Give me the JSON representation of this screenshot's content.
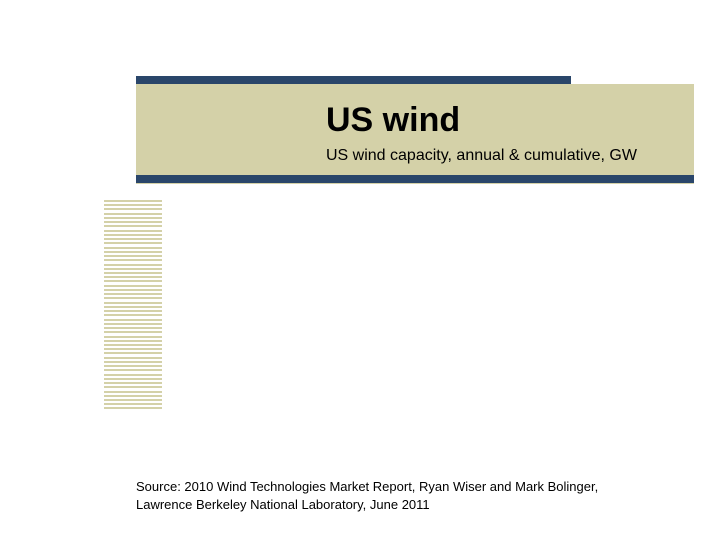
{
  "layout": {
    "slide_width": 720,
    "slide_height": 540,
    "background_color": "#ffffff"
  },
  "header": {
    "title": "US wind",
    "subtitle": "US wind capacity, annual & cumulative, GW",
    "band_color": "#d4d1a8",
    "bar_color": "#2a466a",
    "title_color": "#000000",
    "title_fontsize": 34,
    "subtitle_fontsize": 16
  },
  "stripes": {
    "count": 50,
    "color": "#d4d1a8"
  },
  "footer": {
    "source_line1": "Source: 2010 Wind Technologies Market Report, Ryan Wiser and Mark Bolinger,",
    "source_line2": "Lawrence Berkeley National Laboratory, June 2011",
    "fontsize": 13,
    "color": "#000000"
  }
}
